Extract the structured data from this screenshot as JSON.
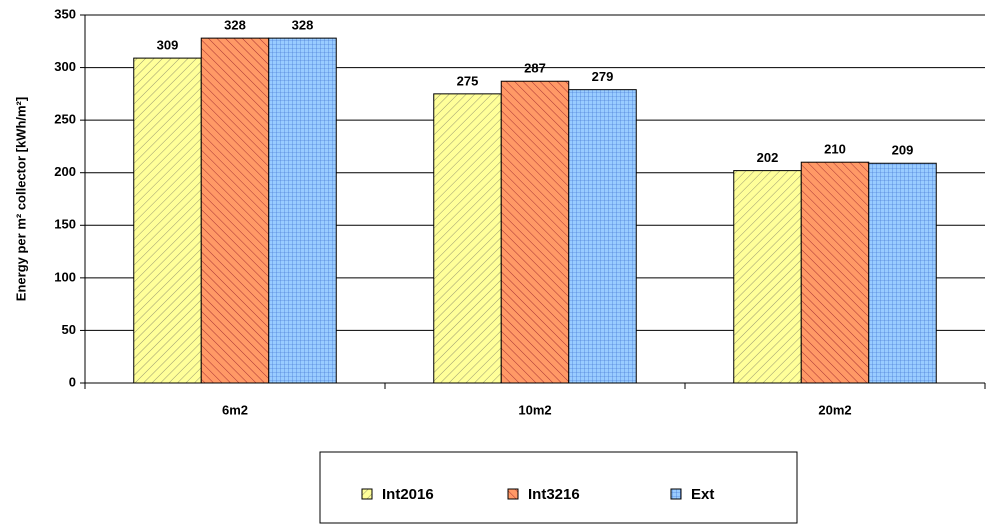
{
  "chart_data": {
    "type": "bar",
    "ylabel": "Energy per m² collector [kWh/m²]",
    "categories": [
      "6m2",
      "10m2",
      "20m2"
    ],
    "series": [
      {
        "name": "Int2016",
        "color": "#ffff99",
        "pattern": "diagonal",
        "values": [
          309,
          275,
          202
        ]
      },
      {
        "name": "Int3216",
        "color": "#ff9966",
        "pattern": "hatch",
        "values": [
          328,
          287,
          210
        ]
      },
      {
        "name": "Ext",
        "color": "#99ccff",
        "pattern": "grid",
        "values": [
          328,
          279,
          209
        ]
      }
    ],
    "ylim": [
      0,
      350
    ],
    "yticks": [
      0,
      50,
      100,
      150,
      200,
      250,
      300,
      350
    ],
    "grid": true,
    "legend": "bottom"
  }
}
